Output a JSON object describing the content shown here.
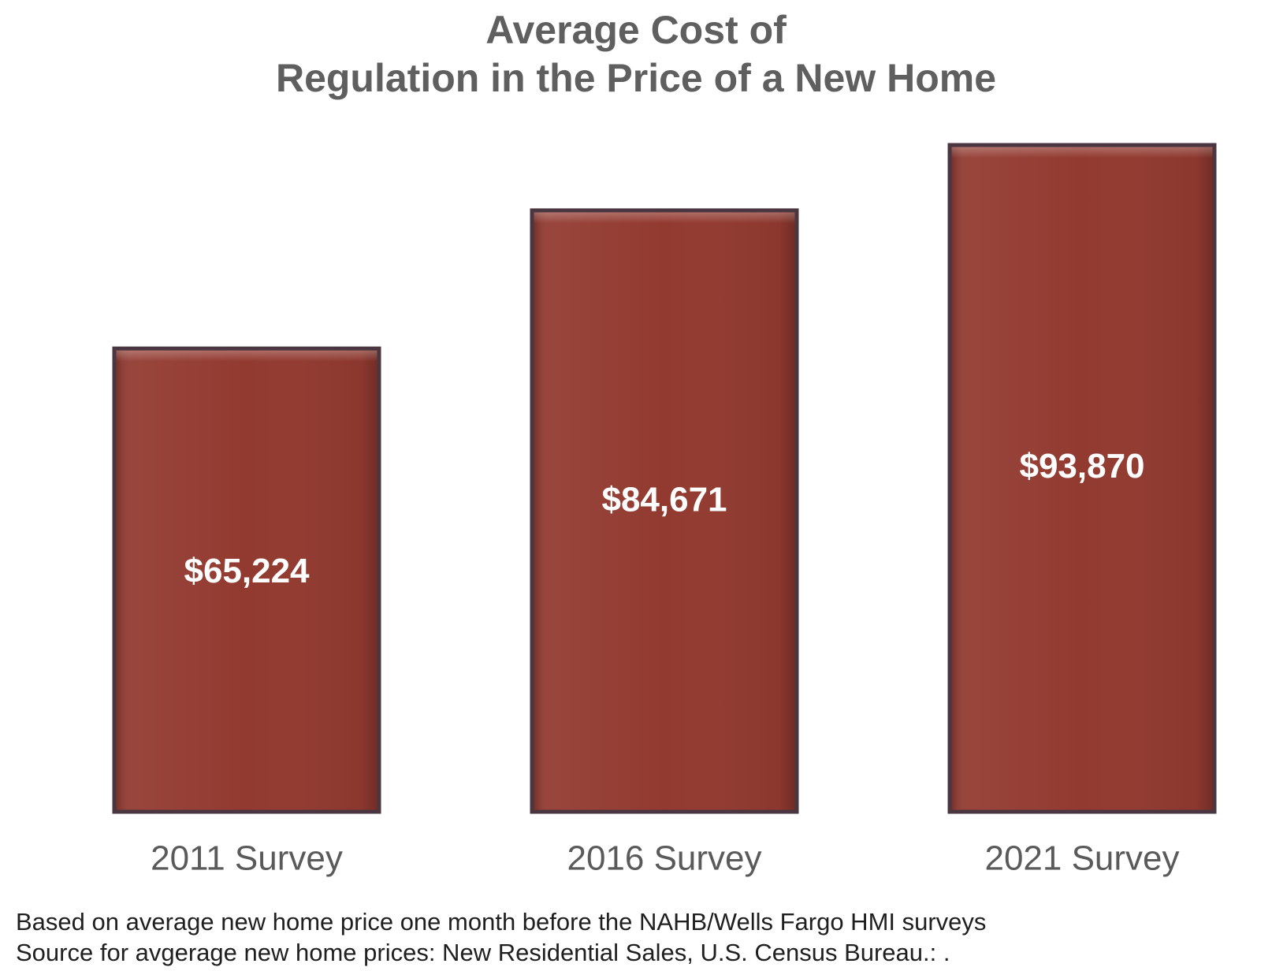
{
  "title_lines": [
    "Average Cost of",
    "Regulation in the Price of a New Home"
  ],
  "footnotes": [
    "Based on average  new home price one month before the NAHB/Wells Fargo HMI surveys",
    "Source for avgerage  new home prices: New Residential Sales, U.S. Census Bureau.: ."
  ],
  "chart_data": {
    "type": "bar",
    "title": "Average Cost of Regulation in the Price of a New Home",
    "categories": [
      "2011 Survey",
      "2016 Survey",
      "2021 Survey"
    ],
    "values": [
      65224,
      84671,
      93870
    ],
    "data_labels": [
      "$65,224",
      "$84,671",
      "$93,870"
    ],
    "xlabel": "",
    "ylabel": "",
    "ylim": [
      0,
      100000
    ],
    "grid": false,
    "legend": "none",
    "bar_color": "#923a30",
    "bar_border_color": "#4a3640"
  }
}
